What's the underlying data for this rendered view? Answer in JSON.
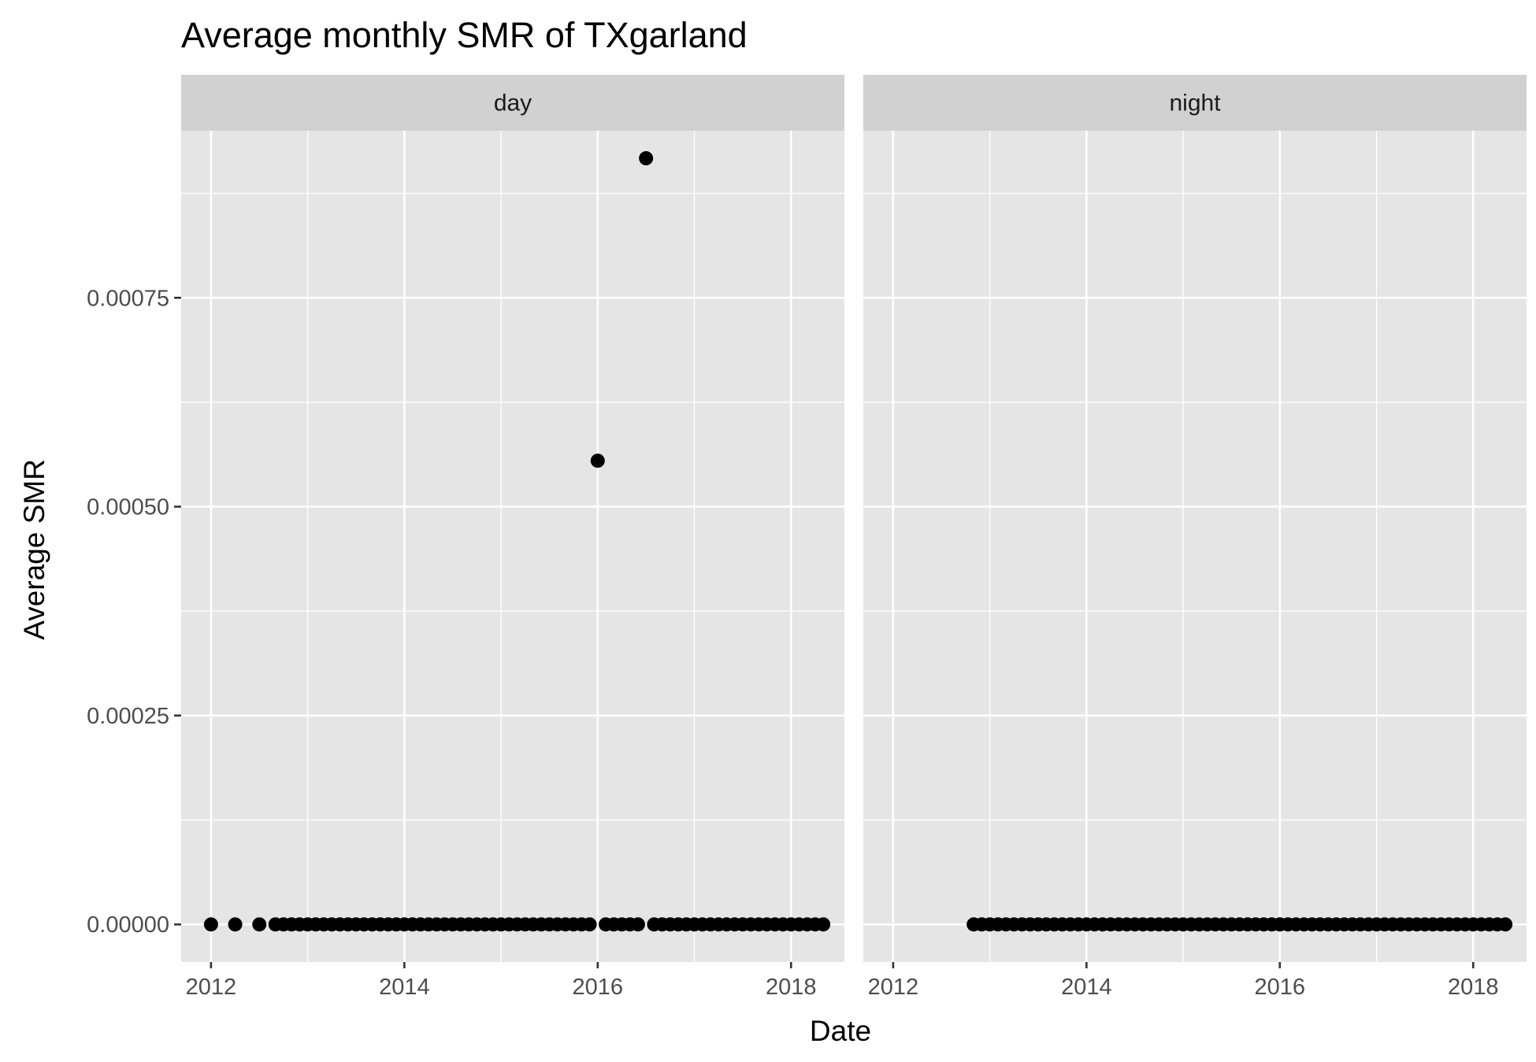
{
  "chart_data": {
    "type": "scatter",
    "title": "Average monthly SMR of TXgarland",
    "xlabel": "Date",
    "ylabel": "Average SMR",
    "x_ticks": [
      "2012",
      "2014",
      "2016",
      "2018"
    ],
    "y_ticks": [
      "0.00000",
      "0.00025",
      "0.00050",
      "0.00075"
    ],
    "xlim": [
      "2011-09-10",
      "2018-07-20"
    ],
    "ylim": [
      -4.5e-05,
      0.00095
    ],
    "grid": true,
    "colors": {
      "panel_bg": "#e5e5e5",
      "strip_bg": "#d1d1d1",
      "grid": "#ffffff",
      "point": "#000000"
    },
    "panels": [
      {
        "name": "day",
        "points": [
          {
            "x": "2012-01",
            "y": 0
          },
          {
            "x": "2012-04",
            "y": 0
          },
          {
            "x": "2012-07",
            "y": 0
          },
          {
            "x": "2012-09",
            "y": 0
          },
          {
            "x": "2012-10",
            "y": 0
          },
          {
            "x": "2012-11",
            "y": 0
          },
          {
            "x": "2012-12",
            "y": 0
          },
          {
            "x": "2013-01",
            "y": 0
          },
          {
            "x": "2013-02",
            "y": 0
          },
          {
            "x": "2013-03",
            "y": 0
          },
          {
            "x": "2013-04",
            "y": 0
          },
          {
            "x": "2013-05",
            "y": 0
          },
          {
            "x": "2013-06",
            "y": 0
          },
          {
            "x": "2013-07",
            "y": 0
          },
          {
            "x": "2013-08",
            "y": 0
          },
          {
            "x": "2013-09",
            "y": 0
          },
          {
            "x": "2013-10",
            "y": 0
          },
          {
            "x": "2013-11",
            "y": 0
          },
          {
            "x": "2013-12",
            "y": 0
          },
          {
            "x": "2014-01",
            "y": 0
          },
          {
            "x": "2014-02",
            "y": 0
          },
          {
            "x": "2014-03",
            "y": 0
          },
          {
            "x": "2014-04",
            "y": 0
          },
          {
            "x": "2014-05",
            "y": 0
          },
          {
            "x": "2014-06",
            "y": 0
          },
          {
            "x": "2014-07",
            "y": 0
          },
          {
            "x": "2014-08",
            "y": 0
          },
          {
            "x": "2014-09",
            "y": 0
          },
          {
            "x": "2014-10",
            "y": 0
          },
          {
            "x": "2014-11",
            "y": 0
          },
          {
            "x": "2014-12",
            "y": 0
          },
          {
            "x": "2015-01",
            "y": 0
          },
          {
            "x": "2015-02",
            "y": 0
          },
          {
            "x": "2015-03",
            "y": 0
          },
          {
            "x": "2015-04",
            "y": 0
          },
          {
            "x": "2015-05",
            "y": 0
          },
          {
            "x": "2015-06",
            "y": 0
          },
          {
            "x": "2015-07",
            "y": 0
          },
          {
            "x": "2015-08",
            "y": 0
          },
          {
            "x": "2015-09",
            "y": 0
          },
          {
            "x": "2015-10",
            "y": 0
          },
          {
            "x": "2015-11",
            "y": 0
          },
          {
            "x": "2015-12",
            "y": 0
          },
          {
            "x": "2016-01",
            "y": 0.000555
          },
          {
            "x": "2016-02",
            "y": 0
          },
          {
            "x": "2016-03",
            "y": 0
          },
          {
            "x": "2016-04",
            "y": 0
          },
          {
            "x": "2016-05",
            "y": 0
          },
          {
            "x": "2016-06",
            "y": 0
          },
          {
            "x": "2016-07",
            "y": 0.000917
          },
          {
            "x": "2016-08",
            "y": 0
          },
          {
            "x": "2016-09",
            "y": 0
          },
          {
            "x": "2016-10",
            "y": 0
          },
          {
            "x": "2016-11",
            "y": 0
          },
          {
            "x": "2016-12",
            "y": 0
          },
          {
            "x": "2017-01",
            "y": 0
          },
          {
            "x": "2017-02",
            "y": 0
          },
          {
            "x": "2017-03",
            "y": 0
          },
          {
            "x": "2017-04",
            "y": 0
          },
          {
            "x": "2017-05",
            "y": 0
          },
          {
            "x": "2017-06",
            "y": 0
          },
          {
            "x": "2017-07",
            "y": 0
          },
          {
            "x": "2017-08",
            "y": 0
          },
          {
            "x": "2017-09",
            "y": 0
          },
          {
            "x": "2017-10",
            "y": 0
          },
          {
            "x": "2017-11",
            "y": 0
          },
          {
            "x": "2017-12",
            "y": 0
          },
          {
            "x": "2018-01",
            "y": 0
          },
          {
            "x": "2018-02",
            "y": 0
          },
          {
            "x": "2018-03",
            "y": 0
          },
          {
            "x": "2018-04",
            "y": 0
          },
          {
            "x": "2018-05",
            "y": 0
          }
        ]
      },
      {
        "name": "night",
        "points": [
          {
            "x": "2012-11",
            "y": 0
          },
          {
            "x": "2012-12",
            "y": 0
          },
          {
            "x": "2013-01",
            "y": 0
          },
          {
            "x": "2013-02",
            "y": 0
          },
          {
            "x": "2013-03",
            "y": 0
          },
          {
            "x": "2013-04",
            "y": 0
          },
          {
            "x": "2013-05",
            "y": 0
          },
          {
            "x": "2013-06",
            "y": 0
          },
          {
            "x": "2013-07",
            "y": 0
          },
          {
            "x": "2013-08",
            "y": 0
          },
          {
            "x": "2013-09",
            "y": 0
          },
          {
            "x": "2013-10",
            "y": 0
          },
          {
            "x": "2013-11",
            "y": 0
          },
          {
            "x": "2013-12",
            "y": 0
          },
          {
            "x": "2014-01",
            "y": 0
          },
          {
            "x": "2014-02",
            "y": 0
          },
          {
            "x": "2014-03",
            "y": 0
          },
          {
            "x": "2014-04",
            "y": 0
          },
          {
            "x": "2014-05",
            "y": 0
          },
          {
            "x": "2014-06",
            "y": 0
          },
          {
            "x": "2014-07",
            "y": 0
          },
          {
            "x": "2014-08",
            "y": 0
          },
          {
            "x": "2014-09",
            "y": 0
          },
          {
            "x": "2014-10",
            "y": 0
          },
          {
            "x": "2014-11",
            "y": 0
          },
          {
            "x": "2014-12",
            "y": 0
          },
          {
            "x": "2015-01",
            "y": 0
          },
          {
            "x": "2015-02",
            "y": 0
          },
          {
            "x": "2015-03",
            "y": 0
          },
          {
            "x": "2015-04",
            "y": 0
          },
          {
            "x": "2015-05",
            "y": 0
          },
          {
            "x": "2015-06",
            "y": 0
          },
          {
            "x": "2015-07",
            "y": 0
          },
          {
            "x": "2015-08",
            "y": 0
          },
          {
            "x": "2015-09",
            "y": 0
          },
          {
            "x": "2015-10",
            "y": 0
          },
          {
            "x": "2015-11",
            "y": 0
          },
          {
            "x": "2015-12",
            "y": 0
          },
          {
            "x": "2016-01",
            "y": 0
          },
          {
            "x": "2016-02",
            "y": 0
          },
          {
            "x": "2016-03",
            "y": 0
          },
          {
            "x": "2016-04",
            "y": 0
          },
          {
            "x": "2016-05",
            "y": 0
          },
          {
            "x": "2016-06",
            "y": 0
          },
          {
            "x": "2016-07",
            "y": 0
          },
          {
            "x": "2016-08",
            "y": 0
          },
          {
            "x": "2016-09",
            "y": 0
          },
          {
            "x": "2016-10",
            "y": 0
          },
          {
            "x": "2016-11",
            "y": 0
          },
          {
            "x": "2016-12",
            "y": 0
          },
          {
            "x": "2017-01",
            "y": 0
          },
          {
            "x": "2017-02",
            "y": 0
          },
          {
            "x": "2017-03",
            "y": 0
          },
          {
            "x": "2017-04",
            "y": 0
          },
          {
            "x": "2017-05",
            "y": 0
          },
          {
            "x": "2017-06",
            "y": 0
          },
          {
            "x": "2017-07",
            "y": 0
          },
          {
            "x": "2017-08",
            "y": 0
          },
          {
            "x": "2017-09",
            "y": 0
          },
          {
            "x": "2017-10",
            "y": 0
          },
          {
            "x": "2017-11",
            "y": 0
          },
          {
            "x": "2017-12",
            "y": 0
          },
          {
            "x": "2018-01",
            "y": 0
          },
          {
            "x": "2018-02",
            "y": 0
          },
          {
            "x": "2018-03",
            "y": 0
          },
          {
            "x": "2018-04",
            "y": 0
          },
          {
            "x": "2018-05",
            "y": 0
          }
        ]
      }
    ]
  }
}
